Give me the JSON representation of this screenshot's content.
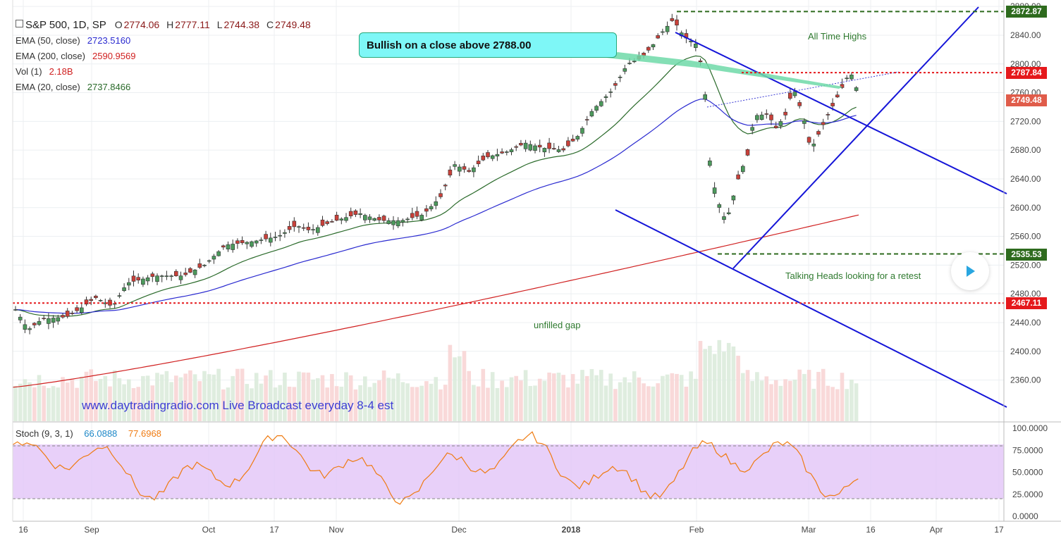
{
  "header": {
    "symbol": "S&P 500, 1D, SP",
    "open_label": "O",
    "open": "2774.06",
    "high_label": "H",
    "high": "2777.11",
    "low_label": "L",
    "low": "2744.38",
    "close_label": "C",
    "close": "2749.48"
  },
  "indicators": {
    "ema50": {
      "label": "EMA (50, close)",
      "value": "2723.5160",
      "color": "#2a2ad0"
    },
    "ema200": {
      "label": "EMA (200, close)",
      "value": "2590.9569",
      "color": "#d02020"
    },
    "vol": {
      "label": "Vol (1)",
      "value": "2.18B"
    },
    "ema20": {
      "label": "EMA (20, close)",
      "value": "2737.8466",
      "color": "#2a6a2a"
    }
  },
  "stoch": {
    "label": "Stoch (9, 3, 1)",
    "k_value": "66.0888",
    "d_value": "77.6968",
    "k_color": "#1e88c8",
    "d_color": "#ef7b12"
  },
  "annotations": {
    "callout": "Bullish on a close above 2788.00",
    "all_time_highs": "All Time Highs",
    "talking_heads": "Talking Heads looking for a retest",
    "unfilled_gap": "unfilled gap",
    "watermark": "www.daytradingradio.com Live Broadcast everyday 8-4 est"
  },
  "price_tags": [
    {
      "value": "2872.87",
      "color": "#2e6b1e"
    },
    {
      "value": "2787.84",
      "color": "#e5191c"
    },
    {
      "value": "2749.48",
      "color": "#e05c4a"
    },
    {
      "value": "2535.53",
      "color": "#2e6b1e"
    },
    {
      "value": "2467.11",
      "color": "#e5191c"
    }
  ],
  "chart_data": {
    "type": "candlestick",
    "timeframe": "1D",
    "y_ticks": [
      2360,
      2400,
      2440,
      2480,
      2520,
      2560,
      2600,
      2640,
      2680,
      2720,
      2760,
      2800,
      2840,
      2880
    ],
    "ylim": [
      2330,
      2890
    ],
    "x_ticks": [
      "16",
      "Sep",
      "Oct",
      "17",
      "Nov",
      "Dec",
      "2018",
      "Feb",
      "Mar",
      "16",
      "Apr",
      "17"
    ],
    "stoch_ticks": [
      "100.0000",
      "75.0000",
      "50.0000",
      "25.0000",
      "0.0000"
    ],
    "stoch_ylim": [
      0,
      100
    ],
    "stoch_band": [
      20,
      80
    ],
    "up_color": "#3a8a4a",
    "down_color": "#c0392b",
    "levels": [
      {
        "label": "All Time Highs",
        "value": 2872.87,
        "color": "#2e6b1e"
      },
      {
        "label": "Bullish on a close above 2788.00",
        "value": 2787.84,
        "color": "#e5191c"
      },
      {
        "label": "Talking Heads looking for a retest",
        "value": 2535.53,
        "color": "#2e6b1e"
      },
      {
        "label": "unfilled gap",
        "value": 2467.11,
        "color": "#e5191c"
      }
    ],
    "last_close": 2749.48
  }
}
